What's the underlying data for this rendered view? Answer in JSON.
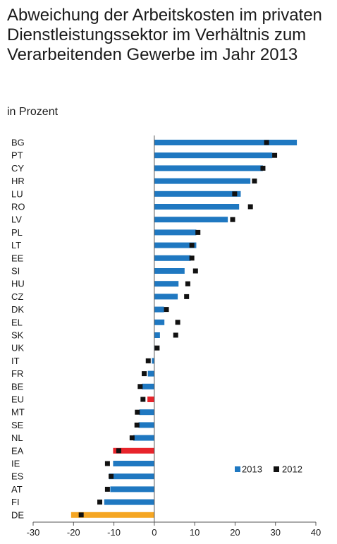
{
  "chart_data": {
    "type": "bar",
    "orientation": "horizontal",
    "title": "Abweichung der Arbeitskosten im privaten Dienstleistungssektor im Verhältnis zum Verarbeitenden Gewerbe im Jahr 2013",
    "subtitle": "in Prozent",
    "xlim": [
      -30,
      40
    ],
    "xticks": [
      -30,
      -20,
      -10,
      0,
      10,
      20,
      30,
      40
    ],
    "grid": false,
    "legend_position": "bottom-right",
    "categories": [
      "BG",
      "PT",
      "CY",
      "HR",
      "LU",
      "RO",
      "LV",
      "PL",
      "LT",
      "EE",
      "SI",
      "HU",
      "CZ",
      "DK",
      "EL",
      "SK",
      "UK",
      "IT",
      "FR",
      "BE",
      "EU",
      "MT",
      "SE",
      "NL",
      "EA",
      "IE",
      "ES",
      "AT",
      "FI",
      "DE"
    ],
    "series": [
      {
        "name": "2013",
        "marker": "bar",
        "color": "#1f78c1",
        "highlight_colors": {
          "EU": "#e8242b",
          "EA": "#e8242b",
          "DE": "#f5a623"
        },
        "values": [
          35.3,
          29.2,
          26.9,
          23.8,
          21.4,
          21.0,
          18.2,
          10.4,
          10.4,
          9.0,
          7.5,
          6.0,
          5.8,
          2.4,
          2.5,
          1.4,
          0.0,
          -0.6,
          -1.6,
          -3.1,
          -1.7,
          -3.7,
          -3.9,
          -5.2,
          -10.2,
          -10.2,
          -11.2,
          -10.9,
          -12.4,
          -20.6
        ]
      },
      {
        "name": "2012",
        "marker": "square",
        "color": "#111111",
        "values": [
          27.8,
          29.8,
          26.9,
          24.8,
          19.9,
          23.8,
          19.4,
          10.8,
          9.3,
          9.3,
          10.2,
          8.3,
          8.0,
          3.0,
          5.8,
          5.3,
          0.7,
          -1.5,
          -2.5,
          -3.5,
          -2.8,
          -4.2,
          -4.3,
          -5.5,
          -8.8,
          -11.6,
          -10.7,
          -11.6,
          -13.5,
          -18.1
        ]
      }
    ]
  }
}
